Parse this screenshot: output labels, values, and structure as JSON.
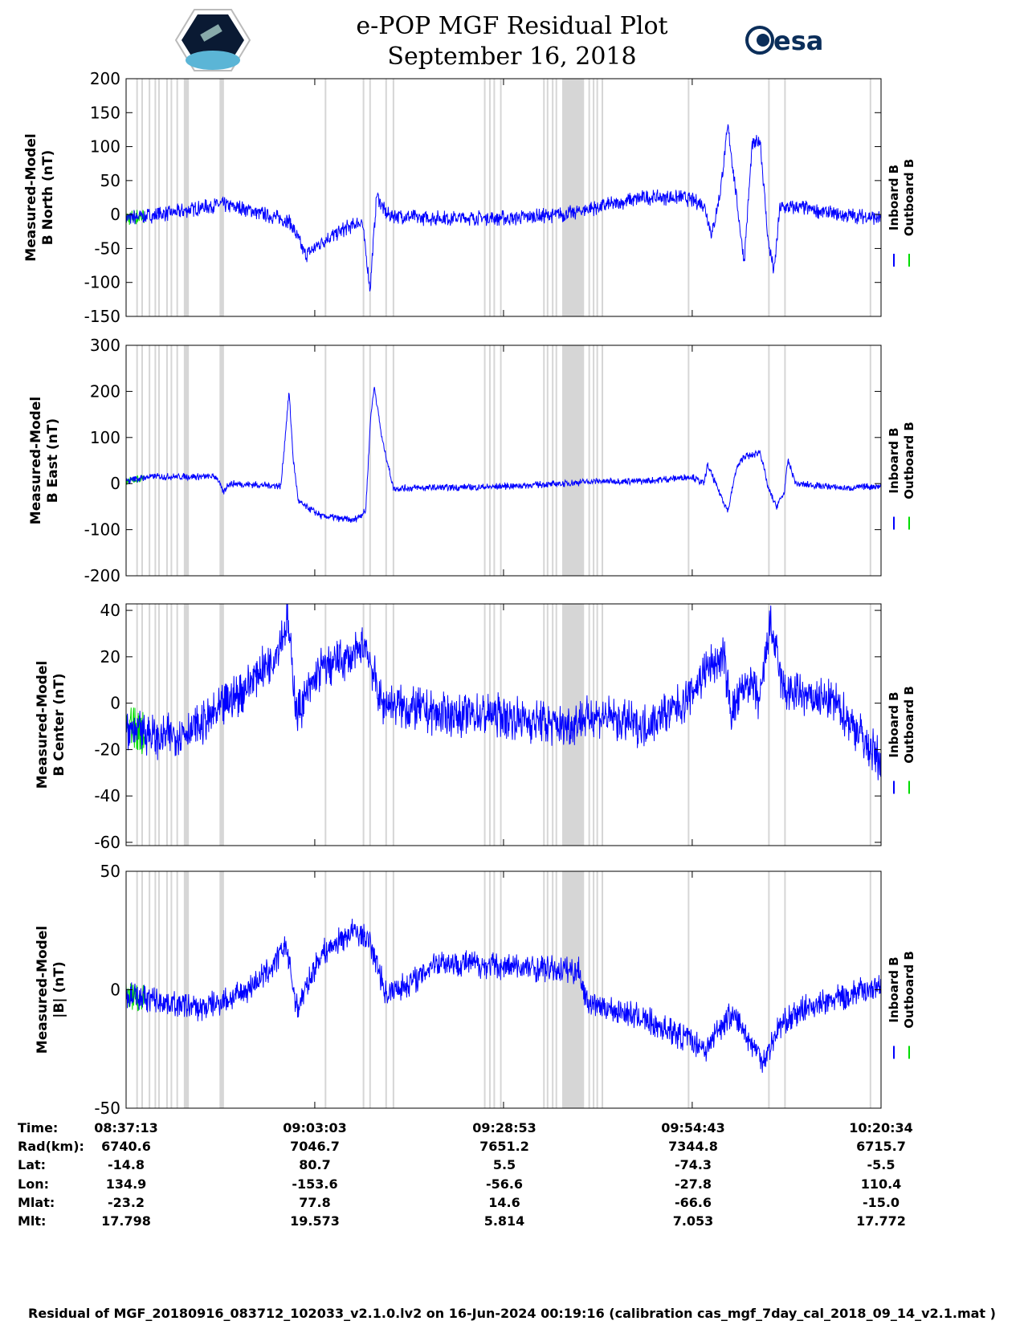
{
  "header": {
    "title": "e-POP MGF Residual Plot",
    "date": "September 16, 2018",
    "logo_left": "CASSIOPE",
    "logo_right": "esa"
  },
  "colors": {
    "inboard": "#0000ff",
    "outboard": "#00dd00",
    "gap": "#d6d6d6"
  },
  "chart_data": {
    "type": "line",
    "x_unit": "minutes since 08:37:13",
    "xlim": [
      0,
      103.35
    ],
    "x_ticks": [
      0,
      25.83,
      51.67,
      77.5,
      103.35
    ],
    "legend": [
      "Inboard B",
      "Outboard B"
    ],
    "legend_placement": "right",
    "data_gaps_lines": [
      1.5,
      2.2,
      3.2,
      4.0,
      4.5,
      5.6,
      6.2,
      7.0,
      12.9,
      13.2,
      27.3,
      32.5,
      33.4,
      35.6,
      36.6,
      49.1,
      49.8,
      50.4,
      51.3,
      57.2,
      57.7,
      58.4,
      58.9,
      63.4,
      64.0,
      64.5,
      65.2,
      77.0,
      88.0,
      90.2,
      101.9
    ],
    "data_gaps_bands": [
      [
        7.9,
        8.6
      ],
      [
        12.8,
        13.4
      ],
      [
        59.7,
        62.7
      ]
    ],
    "panels": [
      {
        "ylabel1": "Measured-Model",
        "ylabel2": "B North (nT)",
        "ylim": [
          -150,
          200
        ],
        "yticks": [
          "200",
          "150",
          "100",
          "50",
          "0",
          "-50",
          "-100",
          "-150"
        ],
        "noise": 12,
        "points": [
          [
            0,
            -5
          ],
          [
            4.7,
            0
          ],
          [
            9.1,
            8
          ],
          [
            13,
            15
          ],
          [
            15.8,
            10
          ],
          [
            19.1,
            0
          ],
          [
            22.4,
            -10
          ],
          [
            24.6,
            -60
          ],
          [
            26.8,
            -40
          ],
          [
            30.1,
            -20
          ],
          [
            32.3,
            -10
          ],
          [
            33.4,
            -110
          ],
          [
            34.3,
            30
          ],
          [
            35.6,
            0
          ],
          [
            40,
            -5
          ],
          [
            48.8,
            -5
          ],
          [
            53.2,
            -5
          ],
          [
            59.8,
            0
          ],
          [
            62,
            5
          ],
          [
            66.4,
            15
          ],
          [
            70.8,
            25
          ],
          [
            76.3,
            25
          ],
          [
            79.1,
            15
          ],
          [
            80.2,
            -30
          ],
          [
            81.3,
            30
          ],
          [
            82.4,
            130
          ],
          [
            83.5,
            30
          ],
          [
            84.6,
            -70
          ],
          [
            85.7,
            100
          ],
          [
            86.8,
            110
          ],
          [
            87.9,
            -40
          ],
          [
            88.7,
            -85
          ],
          [
            89.5,
            10
          ],
          [
            92.8,
            10
          ],
          [
            97.2,
            0
          ],
          [
            103.35,
            -5
          ]
        ]
      },
      {
        "ylabel1": "Measured-Model",
        "ylabel2": "B East (nT)",
        "ylim": [
          -200,
          300
        ],
        "yticks": [
          "300",
          "200",
          "100",
          "0",
          "-100",
          "-200"
        ],
        "noise": 8,
        "points": [
          [
            0,
            5
          ],
          [
            3.1,
            15
          ],
          [
            12.4,
            15
          ],
          [
            13.3,
            -20
          ],
          [
            14,
            0
          ],
          [
            21.2,
            -5
          ],
          [
            22.3,
            200
          ],
          [
            22.9,
            50
          ],
          [
            23.6,
            -40
          ],
          [
            26.7,
            -70
          ],
          [
            31.1,
            -80
          ],
          [
            32.8,
            -60
          ],
          [
            33.5,
            150
          ],
          [
            34,
            210
          ],
          [
            35,
            100
          ],
          [
            36.6,
            -10
          ],
          [
            48.8,
            -8
          ],
          [
            59.8,
            0
          ],
          [
            64.2,
            5
          ],
          [
            70.8,
            5
          ],
          [
            77.4,
            15
          ],
          [
            79.1,
            0
          ],
          [
            79.6,
            40
          ],
          [
            80.7,
            0
          ],
          [
            82.4,
            -60
          ],
          [
            83.5,
            30
          ],
          [
            84.6,
            60
          ],
          [
            85.7,
            60
          ],
          [
            86.8,
            70
          ],
          [
            87.9,
            -10
          ],
          [
            89,
            -50
          ],
          [
            90.1,
            -20
          ],
          [
            90.6,
            50
          ],
          [
            91.7,
            0
          ],
          [
            98.3,
            -10
          ],
          [
            103.35,
            -5
          ]
        ]
      },
      {
        "ylabel1": "Measured-Model",
        "ylabel2": "B Center (nT)",
        "ylim": [
          -61.4,
          42.8
        ],
        "yticks": [
          "40",
          "20",
          "0",
          "-20",
          "-40",
          "-60"
        ],
        "noise": 10,
        "points": [
          [
            0,
            -10
          ],
          [
            4.7,
            -15
          ],
          [
            10.2,
            -10
          ],
          [
            15.8,
            5
          ],
          [
            20.2,
            20
          ],
          [
            22.1,
            35
          ],
          [
            23.4,
            -5
          ],
          [
            26.7,
            15
          ],
          [
            31.1,
            20
          ],
          [
            32.8,
            25
          ],
          [
            35,
            0
          ],
          [
            43.2,
            -5
          ],
          [
            50.9,
            -5
          ],
          [
            59.8,
            -10
          ],
          [
            64.2,
            -5
          ],
          [
            70.8,
            -10
          ],
          [
            76.3,
            0
          ],
          [
            79.6,
            15
          ],
          [
            81.8,
            20
          ],
          [
            82.9,
            -5
          ],
          [
            85.1,
            10
          ],
          [
            86.8,
            0
          ],
          [
            88.1,
            35
          ],
          [
            90,
            5
          ],
          [
            97.2,
            0
          ],
          [
            103.35,
            -25
          ]
        ]
      },
      {
        "ylabel1": "Measured-Model",
        "ylabel2": "|B| (nT)",
        "ylim": [
          -50,
          50
        ],
        "yticks": [
          "50",
          "0",
          "-50"
        ],
        "noise": 6,
        "points": [
          [
            0,
            -2
          ],
          [
            10.2,
            -8
          ],
          [
            15.8,
            -2
          ],
          [
            20.2,
            10
          ],
          [
            21.8,
            20
          ],
          [
            23.4,
            -8
          ],
          [
            26.7,
            15
          ],
          [
            31.1,
            25
          ],
          [
            33.4,
            20
          ],
          [
            35.6,
            -2
          ],
          [
            40,
            5
          ],
          [
            42.2,
            12
          ],
          [
            51,
            10
          ],
          [
            62,
            8
          ],
          [
            63.1,
            -5
          ],
          [
            70.8,
            -12
          ],
          [
            79.6,
            -25
          ],
          [
            80.7,
            -18
          ],
          [
            82.9,
            -10
          ],
          [
            85.1,
            -20
          ],
          [
            87.3,
            -30
          ],
          [
            89.5,
            -15
          ],
          [
            92.8,
            -8
          ],
          [
            103.35,
            2
          ]
        ]
      }
    ]
  },
  "ephemeris": {
    "labels": [
      "Time:",
      "Rad(km):",
      "Lat:",
      "Lon:",
      "Mlat:",
      "Mlt:"
    ],
    "columns": [
      [
        "08:37:13",
        "6740.6",
        "-14.8",
        "134.9",
        "-23.2",
        "17.798"
      ],
      [
        "09:03:03",
        "7046.7",
        "80.7",
        "-153.6",
        "77.8",
        "19.573"
      ],
      [
        "09:28:53",
        "7651.2",
        "5.5",
        "-56.6",
        "14.6",
        "5.814"
      ],
      [
        "09:54:43",
        "7344.8",
        "-74.3",
        "-27.8",
        "-66.6",
        "7.053"
      ],
      [
        "10:20:34",
        "6715.7",
        "-5.5",
        "110.4",
        "-15.0",
        "17.772"
      ]
    ]
  },
  "footer": "Residual of MGF_20180916_083712_102033_v2.1.0.lv2 on 16-Jun-2024 00:19:16 (calibration cas_mgf_7day_cal_2018_09_14_v2.1.mat )"
}
